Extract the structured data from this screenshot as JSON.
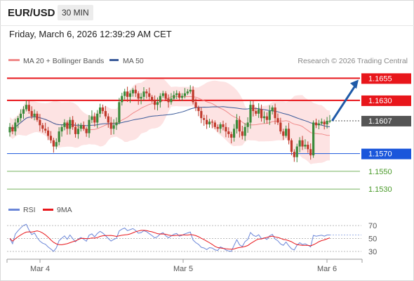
{
  "header": {
    "symbol": "EUR/USD",
    "timeframe": "30 MIN"
  },
  "datetime": "Friday, March 6, 2026 12:39:29 AM CET",
  "legend": {
    "items": [
      {
        "label": "MA 20 + Bollinger Bands",
        "color": "#f08a8a"
      },
      {
        "label": "MA 50",
        "color": "#3b5b9a"
      }
    ],
    "credit": "Research © 2026 Trading Central"
  },
  "colors": {
    "up": "#3a8a3a",
    "down": "#c0392b",
    "resistance": "#e8161b",
    "current": "#333333",
    "pivot": "#1a56db",
    "support": "#4a9a2a",
    "band_fill": "#fde3e3",
    "ma20": "#f08a8a",
    "ma50": "#3b5b9a",
    "rsi": "#6a86d8",
    "rsi_ma": "#e8161b",
    "arrow": "#1f5aa8"
  },
  "chart_data": [
    {
      "type": "candlestick",
      "title": "",
      "ylim": [
        1.1519,
        1.1664
      ],
      "x_labels": [
        "Mar 4",
        "Mar 5",
        "Mar 6"
      ],
      "levels": [
        {
          "value": 1.1655,
          "label": "1.1655",
          "kind": "resistance"
        },
        {
          "value": 1.163,
          "label": "1.1630",
          "kind": "resistance"
        },
        {
          "value": 1.1607,
          "label": "1.1607",
          "kind": "current"
        },
        {
          "value": 1.157,
          "label": "1.1570",
          "kind": "pivot"
        },
        {
          "value": 1.155,
          "label": "1.1550",
          "kind": "support"
        },
        {
          "value": 1.153,
          "label": "1.1530",
          "kind": "support"
        }
      ],
      "close": [
        1.16,
        1.1595,
        1.1605,
        1.161,
        1.1615,
        1.162,
        1.1625,
        1.1618,
        1.1612,
        1.1615,
        1.1608,
        1.1602,
        1.1598,
        1.1596,
        1.159,
        1.1585,
        1.1578,
        1.1583,
        1.1595,
        1.16,
        1.1605,
        1.1598,
        1.1608,
        1.16,
        1.1592,
        1.1598,
        1.1602,
        1.1598,
        1.1593,
        1.1608,
        1.1612,
        1.1605,
        1.1615,
        1.1622,
        1.1618,
        1.1612,
        1.1605,
        1.1598,
        1.1602,
        1.1605,
        1.1628,
        1.1635,
        1.164,
        1.1634,
        1.1638,
        1.1642,
        1.1638,
        1.1632,
        1.1634,
        1.164,
        1.1638,
        1.1634,
        1.163,
        1.1625,
        1.1628,
        1.1635,
        1.1638,
        1.1632,
        1.1628,
        1.1632,
        1.1636,
        1.1638,
        1.1633,
        1.1635,
        1.1638,
        1.164,
        1.1642,
        1.1628,
        1.1622,
        1.1618,
        1.161,
        1.1608,
        1.1603,
        1.1606,
        1.1605,
        1.16,
        1.1598,
        1.1603,
        1.16,
        1.1595,
        1.1592,
        1.1588,
        1.1598,
        1.1608,
        1.1595,
        1.159,
        1.16,
        1.1605,
        1.1625,
        1.1618,
        1.1615,
        1.162,
        1.161,
        1.1612,
        1.1608,
        1.1618,
        1.1622,
        1.161,
        1.1605,
        1.1595,
        1.159,
        1.1598,
        1.1585,
        1.1572,
        1.1566,
        1.1578,
        1.1585,
        1.1578,
        1.158,
        1.1575,
        1.1568,
        1.1605,
        1.1602,
        1.1604,
        1.1606,
        1.1603,
        1.1607,
        1.1607
      ],
      "x_positions_note": "",
      "ma20": [],
      "ma50": []
    },
    {
      "type": "line",
      "title": "",
      "series": [
        {
          "name": "RSI",
          "values": []
        },
        {
          "name": "9MA",
          "values": []
        }
      ],
      "ylim": [
        20,
        80
      ],
      "y_ticks": [
        70,
        50,
        30
      ]
    }
  ]
}
